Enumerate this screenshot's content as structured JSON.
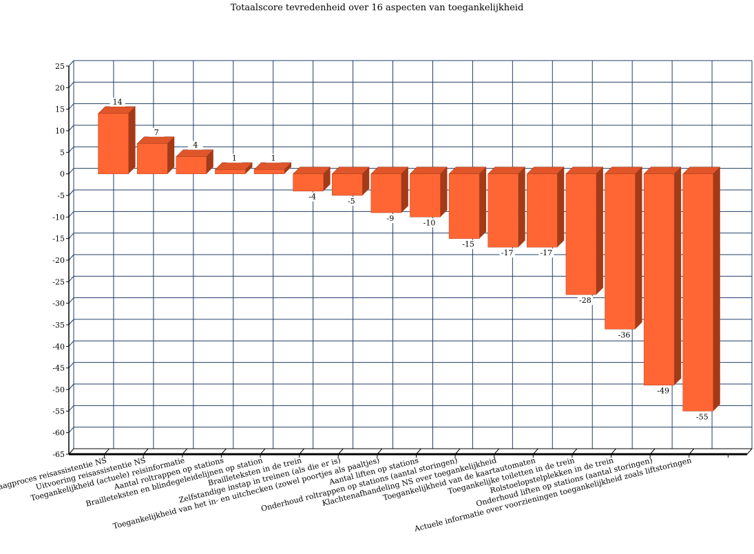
{
  "chart_data": {
    "type": "bar",
    "title": "Totaalscore tevredenheid over 16 aspecten van toegankelijkheid",
    "xlabel": "",
    "ylabel": "",
    "ylim": [
      -65,
      25
    ],
    "yticks": [
      25,
      20,
      15,
      10,
      5,
      0,
      -5,
      -10,
      -15,
      -20,
      -25,
      -30,
      -35,
      -40,
      -45,
      -50,
      -55,
      -60,
      -65
    ],
    "grid": true,
    "categories": [
      "Aanvraagproces reisassistentie NS",
      "Uitvoering reisassistentie NS",
      "Toegankelijkheid (actuele) reisinformatie",
      "Aantal roltrappen op stations",
      "Brailleteksten en blindegeleidelijnen op station",
      "Brailleteksten in de trein",
      "Zelfstandige instap in treinen (als die er is)",
      "Toegankelijkheid van het in- en uitchecken (zowel poortjes als paaltjes)",
      "Aantal liften op stations",
      "Onderhoud roltrappen op stations (aantal storingen)",
      "Klachtenafhandeling NS over toegankelijkheid",
      "Toegankelijkheid van de kaartautomaten",
      "Toegankelijke toiletten in de trein",
      "Rolstoelopstelplekken in de trein",
      "Onderhoud liften op stations (aantal storingen)",
      "Actuele informatie over voorzieningen toegankelijkheid zoals liftstoringen"
    ],
    "values": [
      14,
      7,
      4,
      1,
      1,
      -4,
      -5,
      -9,
      -10,
      -15,
      -17,
      -17,
      -28,
      -36,
      -49,
      -55
    ],
    "colors": {
      "bar_front": "#ff6633",
      "bar_top": "#e0552a",
      "bar_side": "#a33a18",
      "grid": "#1f3d66"
    }
  }
}
